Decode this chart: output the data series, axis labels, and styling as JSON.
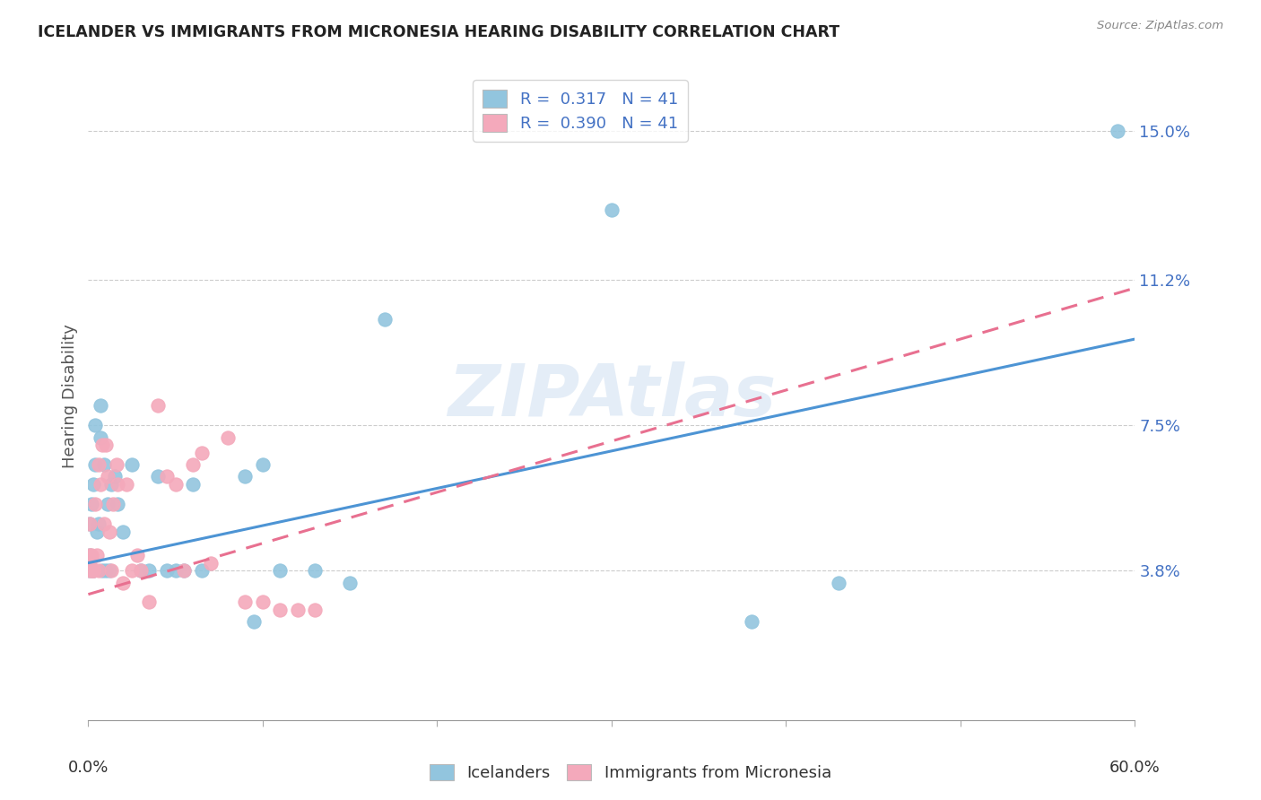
{
  "title": "ICELANDER VS IMMIGRANTS FROM MICRONESIA HEARING DISABILITY CORRELATION CHART",
  "source": "Source: ZipAtlas.com",
  "ylabel": "Hearing Disability",
  "xlim": [
    0.0,
    0.6
  ],
  "ylim": [
    0.0,
    0.165
  ],
  "ytick_vals": [
    0.038,
    0.075,
    0.112,
    0.15
  ],
  "ytick_labels": [
    "3.8%",
    "7.5%",
    "11.2%",
    "15.0%"
  ],
  "legend_r1": "R =  0.317   N = 41",
  "legend_r2": "R =  0.390   N = 41",
  "color_blue": "#92c5de",
  "color_pink": "#f4a9bb",
  "label_icelanders": "Icelanders",
  "label_micronesia": "Immigrants from Micronesia",
  "watermark": "ZIPAtlas",
  "blue_intercept": 0.04,
  "blue_slope": 0.095,
  "pink_intercept": 0.032,
  "pink_slope": 0.13,
  "blue_x": [
    0.001,
    0.001,
    0.001,
    0.002,
    0.003,
    0.003,
    0.004,
    0.004,
    0.005,
    0.006,
    0.007,
    0.007,
    0.008,
    0.009,
    0.01,
    0.011,
    0.012,
    0.013,
    0.015,
    0.017,
    0.02,
    0.025,
    0.03,
    0.035,
    0.04,
    0.045,
    0.05,
    0.055,
    0.06,
    0.065,
    0.09,
    0.095,
    0.1,
    0.11,
    0.13,
    0.15,
    0.17,
    0.3,
    0.38,
    0.43,
    0.59
  ],
  "blue_y": [
    0.05,
    0.042,
    0.038,
    0.055,
    0.06,
    0.038,
    0.065,
    0.075,
    0.048,
    0.05,
    0.072,
    0.08,
    0.038,
    0.065,
    0.038,
    0.055,
    0.038,
    0.06,
    0.062,
    0.055,
    0.048,
    0.065,
    0.038,
    0.038,
    0.062,
    0.038,
    0.038,
    0.038,
    0.06,
    0.038,
    0.062,
    0.025,
    0.065,
    0.038,
    0.038,
    0.035,
    0.102,
    0.13,
    0.025,
    0.035,
    0.15
  ],
  "pink_x": [
    0.001,
    0.001,
    0.001,
    0.001,
    0.002,
    0.002,
    0.003,
    0.003,
    0.004,
    0.005,
    0.006,
    0.006,
    0.007,
    0.008,
    0.009,
    0.01,
    0.011,
    0.012,
    0.013,
    0.014,
    0.016,
    0.017,
    0.02,
    0.022,
    0.025,
    0.028,
    0.03,
    0.035,
    0.04,
    0.045,
    0.05,
    0.055,
    0.06,
    0.065,
    0.07,
    0.08,
    0.09,
    0.1,
    0.11,
    0.12,
    0.13
  ],
  "pink_y": [
    0.038,
    0.04,
    0.042,
    0.05,
    0.038,
    0.042,
    0.038,
    0.038,
    0.055,
    0.042,
    0.065,
    0.038,
    0.06,
    0.07,
    0.05,
    0.07,
    0.062,
    0.048,
    0.038,
    0.055,
    0.065,
    0.06,
    0.035,
    0.06,
    0.038,
    0.042,
    0.038,
    0.03,
    0.08,
    0.062,
    0.06,
    0.038,
    0.065,
    0.068,
    0.04,
    0.072,
    0.03,
    0.03,
    0.028,
    0.028,
    0.028
  ]
}
